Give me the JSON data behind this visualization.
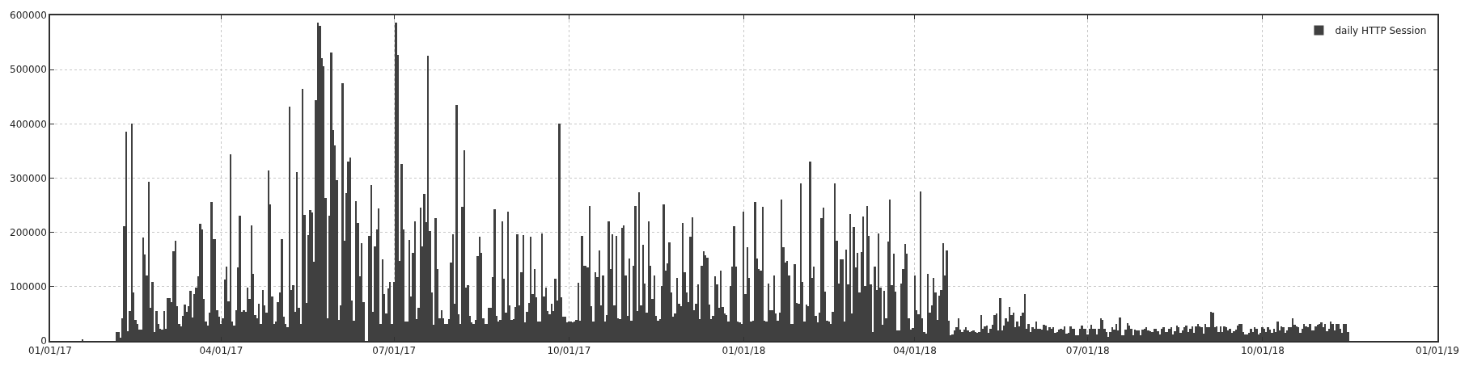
{
  "chart_data": {
    "type": "bar",
    "legend": "top right",
    "grid": true,
    "xlim": [
      "2017-01-01",
      "2019-01-01"
    ],
    "xticks": [
      {
        "value": "2017-01-01",
        "label": "01/01/17"
      },
      {
        "value": "2017-04-01",
        "label": "04/01/17"
      },
      {
        "value": "2017-07-01",
        "label": "07/01/17"
      },
      {
        "value": "2017-10-01",
        "label": "10/01/17"
      },
      {
        "value": "2018-01-01",
        "label": "01/01/18"
      },
      {
        "value": "2018-04-01",
        "label": "04/01/18"
      },
      {
        "value": "2018-07-01",
        "label": "07/01/18"
      },
      {
        "value": "2018-10-01",
        "label": "10/01/18"
      },
      {
        "value": "2019-01-01",
        "label": "01/01/19"
      }
    ],
    "ylim": [
      0,
      600000
    ],
    "yticks": [
      0,
      100000,
      200000,
      300000,
      400000,
      500000,
      600000
    ],
    "series": [
      {
        "name": "daily HTTP Session",
        "color": "#404040",
        "x": [
          "2017-01-18",
          "2017-02-05",
          "2017-02-06",
          "2017-02-07",
          "2017-02-08",
          "2017-02-09",
          "2017-02-10",
          "2017-02-11",
          "2017-02-12",
          "2017-02-13",
          "2017-02-14",
          "2017-02-15",
          "2017-02-16",
          "2017-02-17",
          "2017-02-18",
          "2017-02-19",
          "2017-02-20",
          "2017-02-21",
          "2017-02-22",
          "2017-02-23",
          "2017-02-24",
          "2017-02-25",
          "2017-02-26",
          "2017-02-27",
          "2017-02-28",
          "2017-03-01",
          "2017-03-02",
          "2017-03-03",
          "2017-03-04",
          "2017-03-05",
          "2017-03-06",
          "2017-03-07",
          "2017-03-08",
          "2017-03-09",
          "2017-03-10",
          "2017-03-11",
          "2017-03-12",
          "2017-03-13",
          "2017-03-14",
          "2017-03-15",
          "2017-03-16",
          "2017-03-17",
          "2017-03-18",
          "2017-03-19",
          "2017-03-20",
          "2017-03-21",
          "2017-03-22",
          "2017-03-23",
          "2017-03-24",
          "2017-03-25",
          "2017-03-26",
          "2017-03-27",
          "2017-03-28",
          "2017-03-29",
          "2017-03-30",
          "2017-03-31",
          "2017-04-01",
          "2017-04-02",
          "2017-04-03",
          "2017-04-04",
          "2017-04-05",
          "2017-04-06",
          "2017-04-07",
          "2017-04-08",
          "2017-04-09",
          "2017-04-10",
          "2017-04-11",
          "2017-04-12",
          "2017-04-13",
          "2017-04-14",
          "2017-04-15",
          "2017-04-16",
          "2017-04-17",
          "2017-04-18",
          "2017-04-19",
          "2017-04-20",
          "2017-04-21",
          "2017-04-22",
          "2017-04-23",
          "2017-04-24",
          "2017-04-25",
          "2017-04-26",
          "2017-04-27",
          "2017-04-28",
          "2017-04-29",
          "2017-04-30",
          "2017-05-01",
          "2017-05-02",
          "2017-05-03",
          "2017-05-04",
          "2017-05-05",
          "2017-05-06",
          "2017-05-07",
          "2017-05-08",
          "2017-05-09",
          "2017-05-10",
          "2017-05-11",
          "2017-05-12",
          "2017-05-13",
          "2017-05-14",
          "2017-05-15",
          "2017-05-16",
          "2017-05-17",
          "2017-05-18",
          "2017-05-19",
          "2017-05-20",
          "2017-05-21",
          "2017-05-22",
          "2017-05-23",
          "2017-05-24",
          "2017-05-25",
          "2017-05-26",
          "2017-05-27",
          "2017-05-28",
          "2017-05-29",
          "2017-05-30",
          "2017-05-31",
          "2017-06-01",
          "2017-06-02",
          "2017-06-03",
          "2017-06-04",
          "2017-06-05",
          "2017-06-06",
          "2017-06-07",
          "2017-06-08",
          "2017-06-09",
          "2017-06-10",
          "2017-06-11",
          "2017-06-12",
          "2017-06-13",
          "2017-06-14",
          "2017-06-15",
          "2017-06-16",
          "2017-06-17",
          "2017-06-18",
          "2017-06-19",
          "2017-06-20",
          "2017-06-21",
          "2017-06-22",
          "2017-06-23",
          "2017-06-24",
          "2017-06-25",
          "2017-06-26",
          "2017-06-27",
          "2017-06-28",
          "2017-06-29",
          "2017-06-30",
          "2017-07-01",
          "2017-07-02",
          "2017-07-03",
          "2017-07-04",
          "2017-07-05",
          "2017-07-06",
          "2017-07-07",
          "2017-07-08",
          "2017-07-09",
          "2017-07-10",
          "2017-07-11",
          "2017-07-12",
          "2017-07-13",
          "2017-07-14",
          "2017-07-15",
          "2017-07-16",
          "2017-07-17",
          "2017-07-18",
          "2017-07-19",
          "2017-07-20",
          "2017-07-21",
          "2017-07-22",
          "2017-07-23",
          "2017-07-24",
          "2017-07-25",
          "2017-07-26",
          "2017-07-27",
          "2017-07-28",
          "2017-07-29",
          "2017-07-30",
          "2017-07-31",
          "2017-08-01",
          "2017-08-02",
          "2017-08-03",
          "2017-08-04",
          "2017-08-05",
          "2017-08-06",
          "2017-08-07",
          "2017-08-08",
          "2017-08-09",
          "2017-08-10",
          "2017-08-11",
          "2017-08-12",
          "2017-08-13",
          "2017-08-14",
          "2017-08-15",
          "2017-08-16",
          "2017-08-17",
          "2017-08-18",
          "2017-08-19",
          "2017-08-20",
          "2017-08-21",
          "2017-08-22",
          "2017-08-23",
          "2017-08-24",
          "2017-08-25",
          "2017-08-26",
          "2017-08-27",
          "2017-08-28",
          "2017-08-29",
          "2017-08-30",
          "2017-08-31",
          "2017-09-01",
          "2017-09-02",
          "2017-09-03",
          "2017-09-04",
          "2017-09-05",
          "2017-09-06",
          "2017-09-07",
          "2017-09-08",
          "2017-09-09",
          "2017-09-10",
          "2017-09-11",
          "2017-09-12",
          "2017-09-13",
          "2017-09-14",
          "2017-09-15",
          "2017-09-16",
          "2017-09-17",
          "2017-09-18",
          "2017-09-19",
          "2017-09-20",
          "2017-09-21",
          "2017-09-22",
          "2017-09-23",
          "2017-09-24",
          "2017-09-25",
          "2017-09-26",
          "2017-09-27",
          "2017-09-28",
          "2017-09-29",
          "2017-09-30",
          "2017-10-01",
          "2017-10-02",
          "2017-10-03",
          "2017-10-04",
          "2017-10-05",
          "2017-10-06",
          "2017-10-07",
          "2017-10-08",
          "2017-10-09",
          "2017-10-10",
          "2017-10-11",
          "2017-10-12",
          "2017-10-13",
          "2017-10-14",
          "2017-10-15",
          "2017-10-16",
          "2017-10-17",
          "2017-10-18",
          "2017-10-19",
          "2017-10-20",
          "2017-10-21",
          "2017-10-22",
          "2017-10-23",
          "2017-10-24",
          "2017-10-25",
          "2017-10-26",
          "2017-10-27",
          "2017-10-28",
          "2017-10-29",
          "2017-10-30",
          "2017-10-31",
          "2017-11-01",
          "2017-11-02",
          "2017-11-03",
          "2017-11-04",
          "2017-11-05",
          "2017-11-06",
          "2017-11-07",
          "2017-11-08",
          "2017-11-09",
          "2017-11-10",
          "2017-11-11",
          "2017-11-12",
          "2017-11-13",
          "2017-11-14",
          "2017-11-15",
          "2017-11-16",
          "2017-11-17",
          "2017-11-18",
          "2017-11-19",
          "2017-11-20",
          "2017-11-21",
          "2017-11-22",
          "2017-11-23",
          "2017-11-24",
          "2017-11-25",
          "2017-11-26",
          "2017-11-27",
          "2017-11-28",
          "2017-11-29",
          "2017-11-30",
          "2017-12-01",
          "2017-12-02",
          "2017-12-03",
          "2017-12-04",
          "2017-12-05",
          "2017-12-06",
          "2017-12-07",
          "2017-12-08",
          "2017-12-09",
          "2017-12-10",
          "2017-12-11",
          "2017-12-12",
          "2017-12-13",
          "2017-12-14",
          "2017-12-15",
          "2017-12-16",
          "2017-12-17",
          "2017-12-18",
          "2017-12-19",
          "2017-12-20",
          "2017-12-21",
          "2017-12-22",
          "2017-12-23",
          "2017-12-24",
          "2017-12-25",
          "2017-12-26",
          "2017-12-27",
          "2017-12-28",
          "2017-12-29",
          "2017-12-30",
          "2017-12-31",
          "2018-01-01",
          "2018-01-02",
          "2018-01-03",
          "2018-01-04",
          "2018-01-05",
          "2018-01-06",
          "2018-01-07",
          "2018-01-08",
          "2018-01-09",
          "2018-01-10",
          "2018-01-11",
          "2018-01-12",
          "2018-01-13",
          "2018-01-14",
          "2018-01-15",
          "2018-01-16",
          "2018-01-17",
          "2018-01-18",
          "2018-01-19",
          "2018-01-20",
          "2018-01-21",
          "2018-01-22",
          "2018-01-23",
          "2018-01-24",
          "2018-01-25",
          "2018-01-26",
          "2018-01-27",
          "2018-01-28",
          "2018-01-29",
          "2018-01-30",
          "2018-01-31",
          "2018-02-01",
          "2018-02-02",
          "2018-02-03",
          "2018-02-04",
          "2018-02-05",
          "2018-02-06",
          "2018-02-07",
          "2018-02-08",
          "2018-02-09",
          "2018-02-10",
          "2018-02-11",
          "2018-02-12",
          "2018-02-13",
          "2018-02-14",
          "2018-02-15",
          "2018-02-16",
          "2018-02-17",
          "2018-02-18",
          "2018-02-19",
          "2018-02-20",
          "2018-02-21",
          "2018-02-22",
          "2018-02-23",
          "2018-02-24",
          "2018-02-25",
          "2018-02-26",
          "2018-02-27",
          "2018-02-28",
          "2018-03-01",
          "2018-03-02",
          "2018-03-03",
          "2018-03-04",
          "2018-03-05",
          "2018-03-06",
          "2018-03-07",
          "2018-03-08",
          "2018-03-09",
          "2018-03-10",
          "2018-03-11",
          "2018-03-12",
          "2018-03-13",
          "2018-03-14",
          "2018-03-15",
          "2018-03-16",
          "2018-03-17",
          "2018-03-18",
          "2018-03-19",
          "2018-03-20",
          "2018-03-21",
          "2018-03-22",
          "2018-03-23",
          "2018-03-24",
          "2018-03-25",
          "2018-03-26",
          "2018-03-27",
          "2018-03-28",
          "2018-03-29",
          "2018-03-30",
          "2018-03-31",
          "2018-04-01",
          "2018-04-02",
          "2018-04-03",
          "2018-04-04",
          "2018-04-05",
          "2018-04-06",
          "2018-04-07",
          "2018-04-08",
          "2018-04-09",
          "2018-04-10",
          "2018-04-11",
          "2018-04-12",
          "2018-04-13",
          "2018-04-14",
          "2018-04-15",
          "2018-04-16",
          "2018-04-17",
          "2018-04-18",
          "2018-04-19",
          "2018-04-20",
          "2018-04-21",
          "2018-04-22",
          "2018-04-23",
          "2018-04-24",
          "2018-04-25",
          "2018-04-26",
          "2018-04-27",
          "2018-04-28",
          "2018-04-29",
          "2018-04-30",
          "2018-05-01",
          "2018-05-02",
          "2018-05-03",
          "2018-05-04",
          "2018-05-05",
          "2018-05-06",
          "2018-05-07",
          "2018-05-08",
          "2018-05-09",
          "2018-05-10",
          "2018-05-11",
          "2018-05-12",
          "2018-05-13",
          "2018-05-14",
          "2018-05-15",
          "2018-05-16",
          "2018-05-17",
          "2018-05-18",
          "2018-05-19",
          "2018-05-20",
          "2018-05-21",
          "2018-05-22",
          "2018-05-23",
          "2018-05-24",
          "2018-05-25",
          "2018-05-26",
          "2018-05-27",
          "2018-05-28",
          "2018-05-29",
          "2018-05-30",
          "2018-05-31",
          "2018-06-01",
          "2018-06-02",
          "2018-06-03",
          "2018-06-04",
          "2018-06-05",
          "2018-06-06",
          "2018-06-07",
          "2018-06-08",
          "2018-06-09",
          "2018-06-10",
          "2018-06-11",
          "2018-06-12",
          "2018-06-13",
          "2018-06-14",
          "2018-06-15",
          "2018-06-16",
          "2018-06-17",
          "2018-06-18",
          "2018-06-19",
          "2018-06-20",
          "2018-06-21",
          "2018-06-22",
          "2018-06-23",
          "2018-06-24",
          "2018-06-25",
          "2018-06-26",
          "2018-06-27",
          "2018-06-28",
          "2018-06-29",
          "2018-06-30",
          "2018-07-01",
          "2018-07-02",
          "2018-07-03",
          "2018-07-04",
          "2018-07-05",
          "2018-07-06",
          "2018-07-07",
          "2018-07-08",
          "2018-07-09",
          "2018-07-10",
          "2018-07-11",
          "2018-07-12",
          "2018-07-13",
          "2018-07-14",
          "2018-07-15",
          "2018-07-16",
          "2018-07-17",
          "2018-07-18",
          "2018-07-19",
          "2018-07-20",
          "2018-07-21",
          "2018-07-22",
          "2018-07-23",
          "2018-07-24",
          "2018-07-25",
          "2018-07-26",
          "2018-07-27",
          "2018-07-28",
          "2018-07-29",
          "2018-07-30",
          "2018-07-31",
          "2018-08-01",
          "2018-08-02",
          "2018-08-03",
          "2018-08-04",
          "2018-08-05",
          "2018-08-06",
          "2018-08-07",
          "2018-08-08",
          "2018-08-09",
          "2018-08-10",
          "2018-08-11",
          "2018-08-12",
          "2018-08-13",
          "2018-08-14",
          "2018-08-15",
          "2018-08-16",
          "2018-08-17",
          "2018-08-18",
          "2018-08-19",
          "2018-08-20",
          "2018-08-21",
          "2018-08-22",
          "2018-08-23",
          "2018-08-24",
          "2018-08-25",
          "2018-08-26",
          "2018-08-27",
          "2018-08-28",
          "2018-08-29",
          "2018-08-30",
          "2018-08-31",
          "2018-09-01",
          "2018-09-02",
          "2018-09-03",
          "2018-09-04",
          "2018-09-05",
          "2018-09-06",
          "2018-09-07",
          "2018-09-08",
          "2018-09-09",
          "2018-09-10",
          "2018-09-11",
          "2018-09-12",
          "2018-09-13",
          "2018-09-14",
          "2018-09-15",
          "2018-09-16",
          "2018-09-17",
          "2018-09-18",
          "2018-09-19",
          "2018-09-20",
          "2018-09-21",
          "2018-09-22",
          "2018-09-23",
          "2018-09-24",
          "2018-09-25",
          "2018-09-26",
          "2018-09-27",
          "2018-09-28",
          "2018-09-29",
          "2018-09-30",
          "2018-10-01",
          "2018-10-02",
          "2018-10-03",
          "2018-10-04",
          "2018-10-05",
          "2018-10-06",
          "2018-10-07",
          "2018-10-08",
          "2018-10-09",
          "2018-10-10",
          "2018-10-11",
          "2018-10-12",
          "2018-10-13",
          "2018-10-14",
          "2018-10-15",
          "2018-10-16",
          "2018-10-17",
          "2018-10-18",
          "2018-10-19",
          "2018-10-20",
          "2018-10-21",
          "2018-10-22",
          "2018-10-23",
          "2018-10-24",
          "2018-10-25",
          "2018-10-26",
          "2018-10-27",
          "2018-10-28",
          "2018-10-29",
          "2018-10-30",
          "2018-10-31",
          "2018-11-01",
          "2018-11-02",
          "2018-11-03",
          "2018-11-04",
          "2018-11-05",
          "2018-11-06",
          "2018-11-07",
          "2018-11-08",
          "2018-11-09",
          "2018-11-10",
          "2018-11-11",
          "2018-11-12",
          "2018-11-13",
          "2018-11-14",
          "2018-11-15"
        ],
        "values": [
          3000,
          16000,
          17000,
          6000,
          42000,
          211000,
          385000,
          18000,
          55000,
          400000,
          90000,
          38000,
          32000,
          21000,
          21000,
          191000,
          159000,
          121000,
          293000,
          61000,
          109000,
          17000,
          55000,
          31000,
          22000,
          21000,
          55000,
          23000,
          79000,
          79000,
          72000,
          165000,
          184000,
          64000,
          31000,
          27000,
          46000,
          67000,
          53000,
          64000,
          92000,
          43000,
          87000,
          98000,
          119000,
          216000,
          206000,
          78000,
          35000,
          28000,
          52000,
          256000,
          187000,
          188000,
          57000,
          45000,
          31000,
          42000,
          113000,
          137000,
          73000,
          344000,
          35000,
          28000,
          57000,
          135000,
          231000,
          54000,
          56000,
          53000,
          98000,
          77000,
          213000,
          124000,
          48000,
          42000,
          68000,
          32000,
          94000,
          66000,
          52000,
          314000,
          251000,
          82000,
          32000,
          35000,
          72000,
          90000,
          188000,
          44000,
          32000,
          25000,
          432000,
          94000,
          103000,
          53000,
          311000,
          61000,
          31000,
          465000,
          232000,
          70000,
          195000,
          241000,
          236000,
          146000,
          444000,
          586000,
          581000,
          521000,
          506000,
          264000,
          41000,
          231000,
          531000,
          388000,
          361000,
          296000,
          38000,
          65000,
          475000,
          184000,
          273000,
          331000,
          338000,
          74000,
          37000,
          258000,
          217000,
          119000,
          180000,
          72000,
          null,
          null,
          193000,
          287000,
          53000,
          174000,
          206000,
          244000,
          32000,
          150000,
          87000,
          51000,
          97000,
          109000,
          32000,
          108000,
          587000,
          527000,
          148000,
          326000,
          206000,
          36000,
          36000,
          186000,
          82000,
          162000,
          220000,
          40000,
          61000,
          245000,
          174000,
          271000,
          219000,
          525000,
          202000,
          90000,
          30000,
          226000,
          133000,
          42000,
          57000,
          41000,
          31000,
          32000,
          40000,
          144000,
          197000,
          68000,
          435000,
          49000,
          32000,
          247000,
          352000,
          98000,
          102000,
          46000,
          34000,
          32000,
          38000,
          156000,
          192000,
          163000,
          41000,
          32000,
          32000,
          61000,
          61000,
          118000,
          243000,
          46000,
          35000,
          38000,
          221000,
          115000,
          52000,
          238000,
          66000,
          38000,
          40000,
          62000,
          197000,
          66000,
          127000,
          195000,
          34000,
          54000,
          70000,
          192000,
          87000,
          133000,
          80000,
          35000,
          36000,
          198000,
          82000,
          98000,
          55000,
          49000,
          69000,
          55000,
          114000,
          75000,
          400000,
          80000,
          44000,
          44000,
          34000,
          36000,
          36000,
          34000,
          36000,
          38000,
          107000,
          37000,
          193000,
          139000,
          139000,
          135000,
          249000,
          64000,
          36000,
          126000,
          118000,
          167000,
          66000,
          120000,
          36000,
          47000,
          221000,
          133000,
          197000,
          66000,
          193000,
          41000,
          40000,
          208000,
          213000,
          120000,
          46000,
          152000,
          37000,
          139000,
          249000,
          55000,
          274000,
          65000,
          177000,
          105000,
          52000,
          220000,
          138000,
          77000,
          120000,
          46000,
          37000,
          40000,
          101000,
          251000,
          129000,
          143000,
          182000,
          90000,
          44000,
          51000,
          116000,
          68000,
          64000,
          217000,
          126000,
          90000,
          72000,
          192000,
          228000,
          56000,
          68000,
          104000,
          40000,
          138000,
          165000,
          158000,
          154000,
          67000,
          40000,
          46000,
          119000,
          104000,
          61000,
          129000,
          62000,
          50000,
          47000,
          36000,
          101000,
          137000,
          211000,
          137000,
          36000,
          34000,
          32000,
          238000,
          87000,
          173000,
          116000,
          36000,
          37000,
          256000,
          152000,
          133000,
          129000,
          247000,
          37000,
          36000,
          105000,
          57000,
          56000,
          120000,
          51000,
          37000,
          52000,
          261000,
          172000,
          144000,
          148000,
          120000,
          32000,
          32000,
          141000,
          70000,
          69000,
          290000,
          109000,
          36000,
          67000,
          64000,
          331000,
          116000,
          137000,
          46000,
          34000,
          52000,
          226000,
          245000,
          91000,
          37000,
          36000,
          32000,
          54000,
          290000,
          184000,
          105000,
          150000,
          150000,
          36000,
          168000,
          104000,
          234000,
          51000,
          210000,
          135000,
          162000,
          89000,
          164000,
          230000,
          101000,
          249000,
          193000,
          104000,
          16000,
          137000,
          94000,
          198000,
          99000,
          30000,
          92000,
          41000,
          183000,
          261000,
          103000,
          161000,
          91000,
          19000,
          19000,
          105000,
          133000,
          178000,
          161000,
          42000,
          21000,
          24000,
          120000,
          57000,
          49000,
          275000,
          41000,
          17000,
          14000,
          124000,
          52000,
          65000,
          116000,
          89000,
          38000,
          83000,
          94000,
          180000,
          120000,
          167000,
          37000,
          11000,
          12000,
          19000,
          25000,
          42000,
          21000,
          17000,
          21000,
          26000,
          20000,
          17000,
          18000,
          20000,
          16000,
          15000,
          16000,
          47000,
          23000,
          27000,
          28000,
          15000,
          22000,
          30000,
          47000,
          50000,
          20000,
          79000,
          20000,
          28000,
          42000,
          36000,
          62000,
          47000,
          52000,
          26000,
          35000,
          27000,
          46000,
          52000,
          87000,
          22000,
          31000,
          16000,
          26000,
          22000,
          35000,
          23000,
          23000,
          21000,
          30000,
          29000,
          20000,
          25000,
          23000,
          25000,
          15000,
          17000,
          21000,
          22000,
          21000,
          27000,
          13000,
          15000,
          27000,
          23000,
          23000,
          11000,
          10000,
          23000,
          28000,
          23000,
          22000,
          12000,
          22000,
          30000,
          23000,
          23000,
          12000,
          22000,
          42000,
          39000,
          23000,
          16000,
          8000,
          16000,
          26000,
          21000,
          31000,
          20000,
          43000,
          11000,
          11000,
          21000,
          33000,
          29000,
          23000,
          11000,
          21000,
          20000,
          20000,
          11000,
          21000,
          23000,
          26000,
          20000,
          18000,
          16000,
          22000,
          23000,
          18000,
          12000,
          23000,
          26000,
          17000,
          17000,
          23000,
          25000,
          12000,
          18000,
          28000,
          26000,
          15000,
          20000,
          26000,
          28000,
          16000,
          23000,
          27000,
          15000,
          27000,
          31000,
          27000,
          26000,
          14000,
          31000,
          26000,
          25000,
          53000,
          52000,
          26000,
          27000,
          16000,
          27000,
          16000,
          27000,
          26000,
          20000,
          23000,
          15000,
          18000,
          21000,
          28000,
          32000,
          32000,
          16000,
          12000,
          12000,
          15000,
          22000,
          17000,
          26000,
          22000,
          12000,
          15000,
          26000,
          23000,
          17000,
          25000,
          21000,
          15000,
          23000,
          17000,
          36000,
          20000,
          27000,
          25000,
          15000,
          20000,
          25000,
          26000,
          41000,
          30000,
          27000,
          26000,
          15000,
          23000,
          31000,
          27000,
          26000,
          31000,
          20000,
          20000,
          27000,
          30000,
          32000,
          34000,
          26000,
          32000,
          18000,
          22000,
          35000,
          31000,
          20000,
          32000,
          31000,
          22000,
          15000,
          32000,
          32000,
          16000
        ]
      }
    ]
  }
}
